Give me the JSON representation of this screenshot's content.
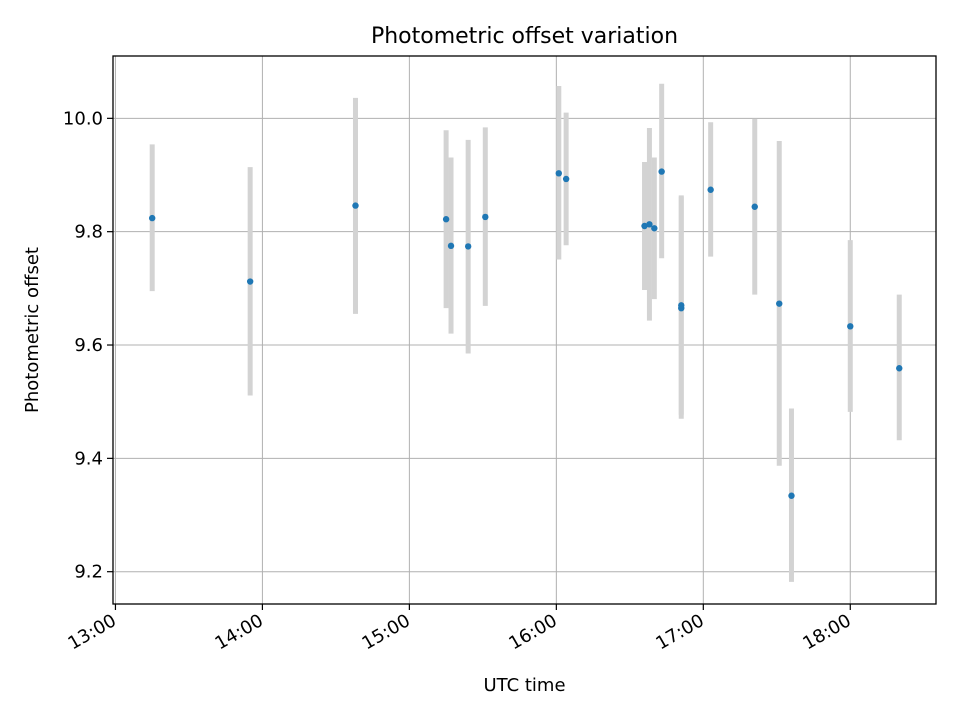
{
  "chart_data": {
    "type": "scatter",
    "title": "Photometric offset variation",
    "xlabel": "UTC time",
    "ylabel": "Photometric offset",
    "xlim": [
      "12:59",
      "18:35"
    ],
    "ylim": [
      9.143,
      10.11
    ],
    "xticks": [
      "13:00",
      "14:00",
      "15:00",
      "16:00",
      "17:00",
      "18:00"
    ],
    "yticks": [
      "9.2",
      "9.4",
      "9.6",
      "9.8",
      "10.0"
    ],
    "grid": true,
    "marker_color": "#1f77b4",
    "errorbar_color": "#d3d3d3",
    "series": [
      {
        "points": [
          {
            "x": "13:15",
            "y": 9.824,
            "ylow": 9.695,
            "yhigh": 9.954
          },
          {
            "x": "13:55",
            "y": 9.712,
            "ylow": 9.511,
            "yhigh": 9.914
          },
          {
            "x": "14:38",
            "y": 9.846,
            "ylow": 9.655,
            "yhigh": 10.036
          },
          {
            "x": "15:15",
            "y": 9.822,
            "ylow": 9.665,
            "yhigh": 9.979
          },
          {
            "x": "15:17",
            "y": 9.775,
            "ylow": 9.62,
            "yhigh": 9.931
          },
          {
            "x": "15:24",
            "y": 9.774,
            "ylow": 9.585,
            "yhigh": 9.962
          },
          {
            "x": "15:31",
            "y": 9.826,
            "ylow": 9.669,
            "yhigh": 9.984
          },
          {
            "x": "16:01",
            "y": 9.903,
            "ylow": 9.751,
            "yhigh": 10.057
          },
          {
            "x": "16:04",
            "y": 9.893,
            "ylow": 9.776,
            "yhigh": 10.01
          },
          {
            "x": "16:36",
            "y": 9.81,
            "ylow": 9.697,
            "yhigh": 9.923
          },
          {
            "x": "16:38",
            "y": 9.813,
            "ylow": 9.643,
            "yhigh": 9.983
          },
          {
            "x": "16:40",
            "y": 9.806,
            "ylow": 9.681,
            "yhigh": 9.931
          },
          {
            "x": "16:43",
            "y": 9.906,
            "ylow": 9.753,
            "yhigh": 10.061
          },
          {
            "x": "16:51",
            "y": 9.665,
            "ylow": 9.47,
            "yhigh": 9.862
          },
          {
            "x": "16:51",
            "y": 9.67,
            "ylow": 9.477,
            "yhigh": 9.864
          },
          {
            "x": "17:03",
            "y": 9.874,
            "ylow": 9.756,
            "yhigh": 9.993
          },
          {
            "x": "17:21",
            "y": 9.844,
            "ylow": 9.689,
            "yhigh": 9.999
          },
          {
            "x": "17:31",
            "y": 9.673,
            "ylow": 9.387,
            "yhigh": 9.96
          },
          {
            "x": "17:36",
            "y": 9.334,
            "ylow": 9.182,
            "yhigh": 9.488
          },
          {
            "x": "18:00",
            "y": 9.633,
            "ylow": 9.482,
            "yhigh": 9.785
          },
          {
            "x": "18:20",
            "y": 9.559,
            "ylow": 9.432,
            "yhigh": 9.689
          }
        ]
      }
    ]
  }
}
